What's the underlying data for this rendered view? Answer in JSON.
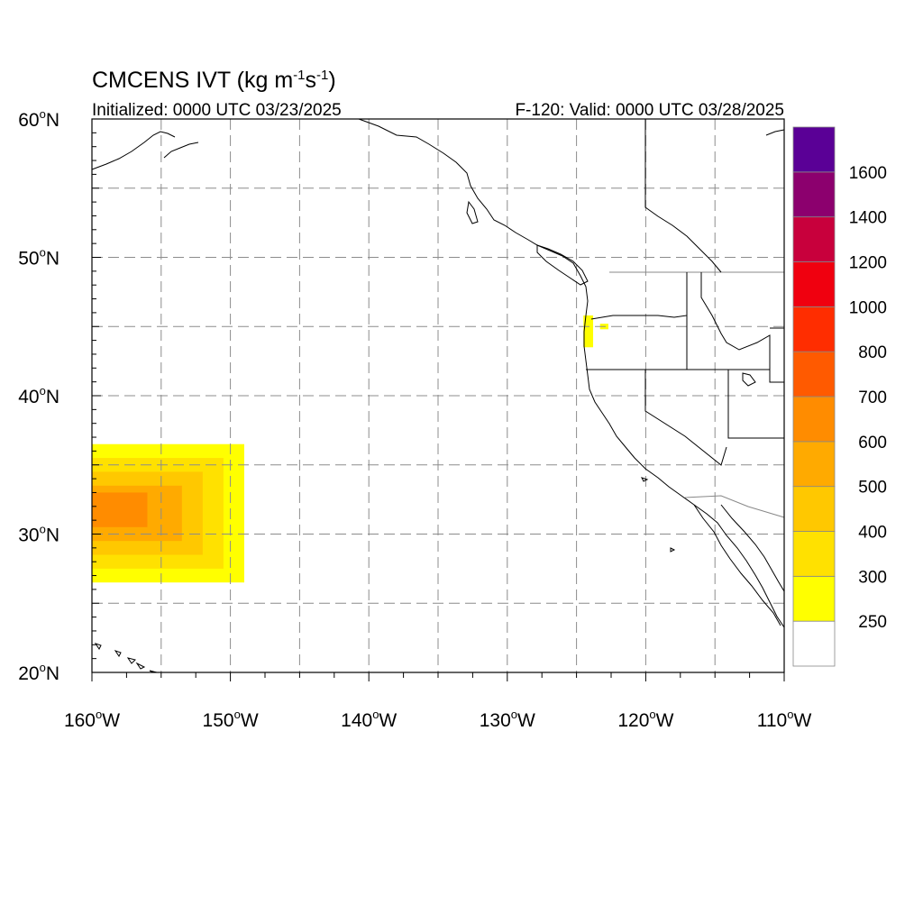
{
  "title": {
    "main": "CMCENS IVT (kg m",
    "sup1": "-1",
    "mid": "s",
    "sup2": "-1",
    "close": ")"
  },
  "initialized": "Initialized: 0000 UTC 03/23/2025",
  "valid": "F-120: Valid: 0000 UTC 03/28/2025",
  "map": {
    "lon_range": [
      -160,
      -110
    ],
    "lat_range": [
      20,
      60
    ],
    "grid_lons": [
      -155,
      -150,
      -145,
      -140,
      -135,
      -130,
      -125,
      -120,
      -115
    ],
    "grid_lats": [
      25,
      30,
      35,
      40,
      45,
      50,
      55
    ],
    "grid_style": "dashed gray"
  },
  "lat_labels": [
    {
      "lat": 60,
      "deg": "60",
      "hemi": "N"
    },
    {
      "lat": 50,
      "deg": "50",
      "hemi": "N"
    },
    {
      "lat": 40,
      "deg": "40",
      "hemi": "N"
    },
    {
      "lat": 30,
      "deg": "30",
      "hemi": "N"
    },
    {
      "lat": 20,
      "deg": "20",
      "hemi": "N"
    }
  ],
  "lon_labels": [
    {
      "lon": -160,
      "deg": "160",
      "hemi": "W"
    },
    {
      "lon": -150,
      "deg": "150",
      "hemi": "W"
    },
    {
      "lon": -140,
      "deg": "140",
      "hemi": "W"
    },
    {
      "lon": -130,
      "deg": "130",
      "hemi": "W"
    },
    {
      "lon": -120,
      "deg": "120",
      "hemi": "W"
    },
    {
      "lon": -110,
      "deg": "110",
      "hemi": "W"
    }
  ],
  "colorbar": {
    "levels": [
      "250",
      "300",
      "400",
      "500",
      "600",
      "700",
      "800",
      "1000",
      "1200",
      "1400",
      "1600"
    ],
    "colors": [
      "#ffffff",
      "#ffff00",
      "#ffe100",
      "#ffc800",
      "#ffaa00",
      "#ff8c00",
      "#ff5a00",
      "#ff2d00",
      "#f0000f",
      "#c8003c",
      "#8c006e",
      "#5a0096"
    ]
  },
  "ivt_field": {
    "description_units": "kg m-1 s-1",
    "cells": [
      {
        "lon": [
          -160,
          -149
        ],
        "lat": [
          26.5,
          36.5
        ],
        "level": 1
      },
      {
        "lon": [
          -160,
          -150.5
        ],
        "lat": [
          27.5,
          35.5
        ],
        "level": 2
      },
      {
        "lon": [
          -160,
          -152
        ],
        "lat": [
          28.5,
          34.5
        ],
        "level": 3
      },
      {
        "lon": [
          -160,
          -153.5
        ],
        "lat": [
          29.5,
          33.5
        ],
        "level": 4
      },
      {
        "lon": [
          -160,
          -156
        ],
        "lat": [
          30.5,
          33
        ],
        "level": 5
      },
      {
        "lon": [
          -124.5,
          -123.8
        ],
        "lat": [
          43.5,
          45.8
        ],
        "level": 1
      },
      {
        "lon": [
          -123.3,
          -122.7
        ],
        "lat": [
          44.8,
          45.2
        ],
        "level": 1
      }
    ]
  }
}
